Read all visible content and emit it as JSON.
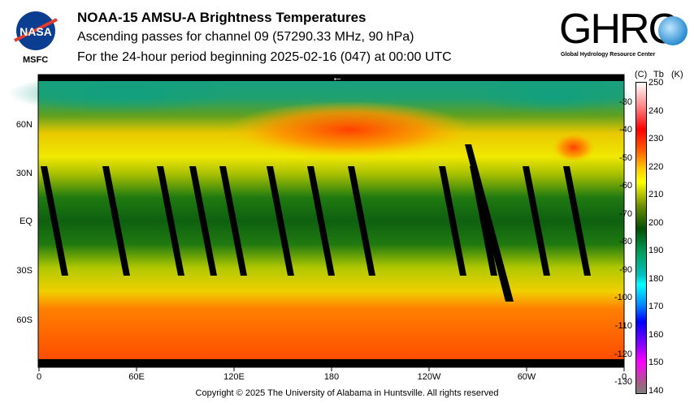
{
  "header": {
    "title": "NOAA-15 AMSU-A Brightness Temperatures",
    "subtitle1": "Ascending passes for channel 09 (57290.33 MHz, 90 hPa)",
    "subtitle2": "For the 24-hour period beginning 2025-02-16 (047) at 00:00 UTC",
    "nasa_logo": "NASA",
    "msfc": "MSFC",
    "ghrc_logo": "GHRC",
    "ghrc_sub": "Global Hydrology Resource Center"
  },
  "footer": {
    "copyright": "Copyright © 2025 The University of Alabama in Huntsville.  All rights reserved"
  },
  "chart_data": {
    "type": "heatmap",
    "title": "NOAA-15 AMSU-A Brightness Temperatures",
    "x_ticks": [
      "0",
      "60E",
      "120E",
      "180",
      "120W",
      "60W",
      "0"
    ],
    "y_ticks": [
      "60N",
      "30N",
      "EQ",
      "30S",
      "60S"
    ],
    "colorbar": {
      "header_c": "(C)",
      "header_tb": "Tb",
      "header_k": "(K)",
      "kelvin_ticks": [
        "250",
        "240",
        "230",
        "220",
        "210",
        "200",
        "190",
        "180",
        "170",
        "160",
        "150",
        "140"
      ],
      "celsius_ticks": [
        "-30",
        "-40",
        "-50",
        "-60",
        "-70",
        "-80",
        "-90",
        "-100",
        "-110",
        "-120",
        "-130"
      ],
      "range_k": [
        140,
        250
      ]
    },
    "lat_band_tb_k": [
      {
        "lat": 85,
        "tb": 195
      },
      {
        "lat": 70,
        "tb": 205
      },
      {
        "lat": 60,
        "tb": 222
      },
      {
        "lat": 45,
        "tb": 218
      },
      {
        "lat": 30,
        "tb": 212
      },
      {
        "lat": 15,
        "tb": 203
      },
      {
        "lat": 0,
        "tb": 200
      },
      {
        "lat": -15,
        "tb": 202
      },
      {
        "lat": -30,
        "tb": 212
      },
      {
        "lat": -45,
        "tb": 222
      },
      {
        "lat": -60,
        "tb": 228
      },
      {
        "lat": -80,
        "tb": 230
      }
    ],
    "direction_arrow": "←"
  }
}
